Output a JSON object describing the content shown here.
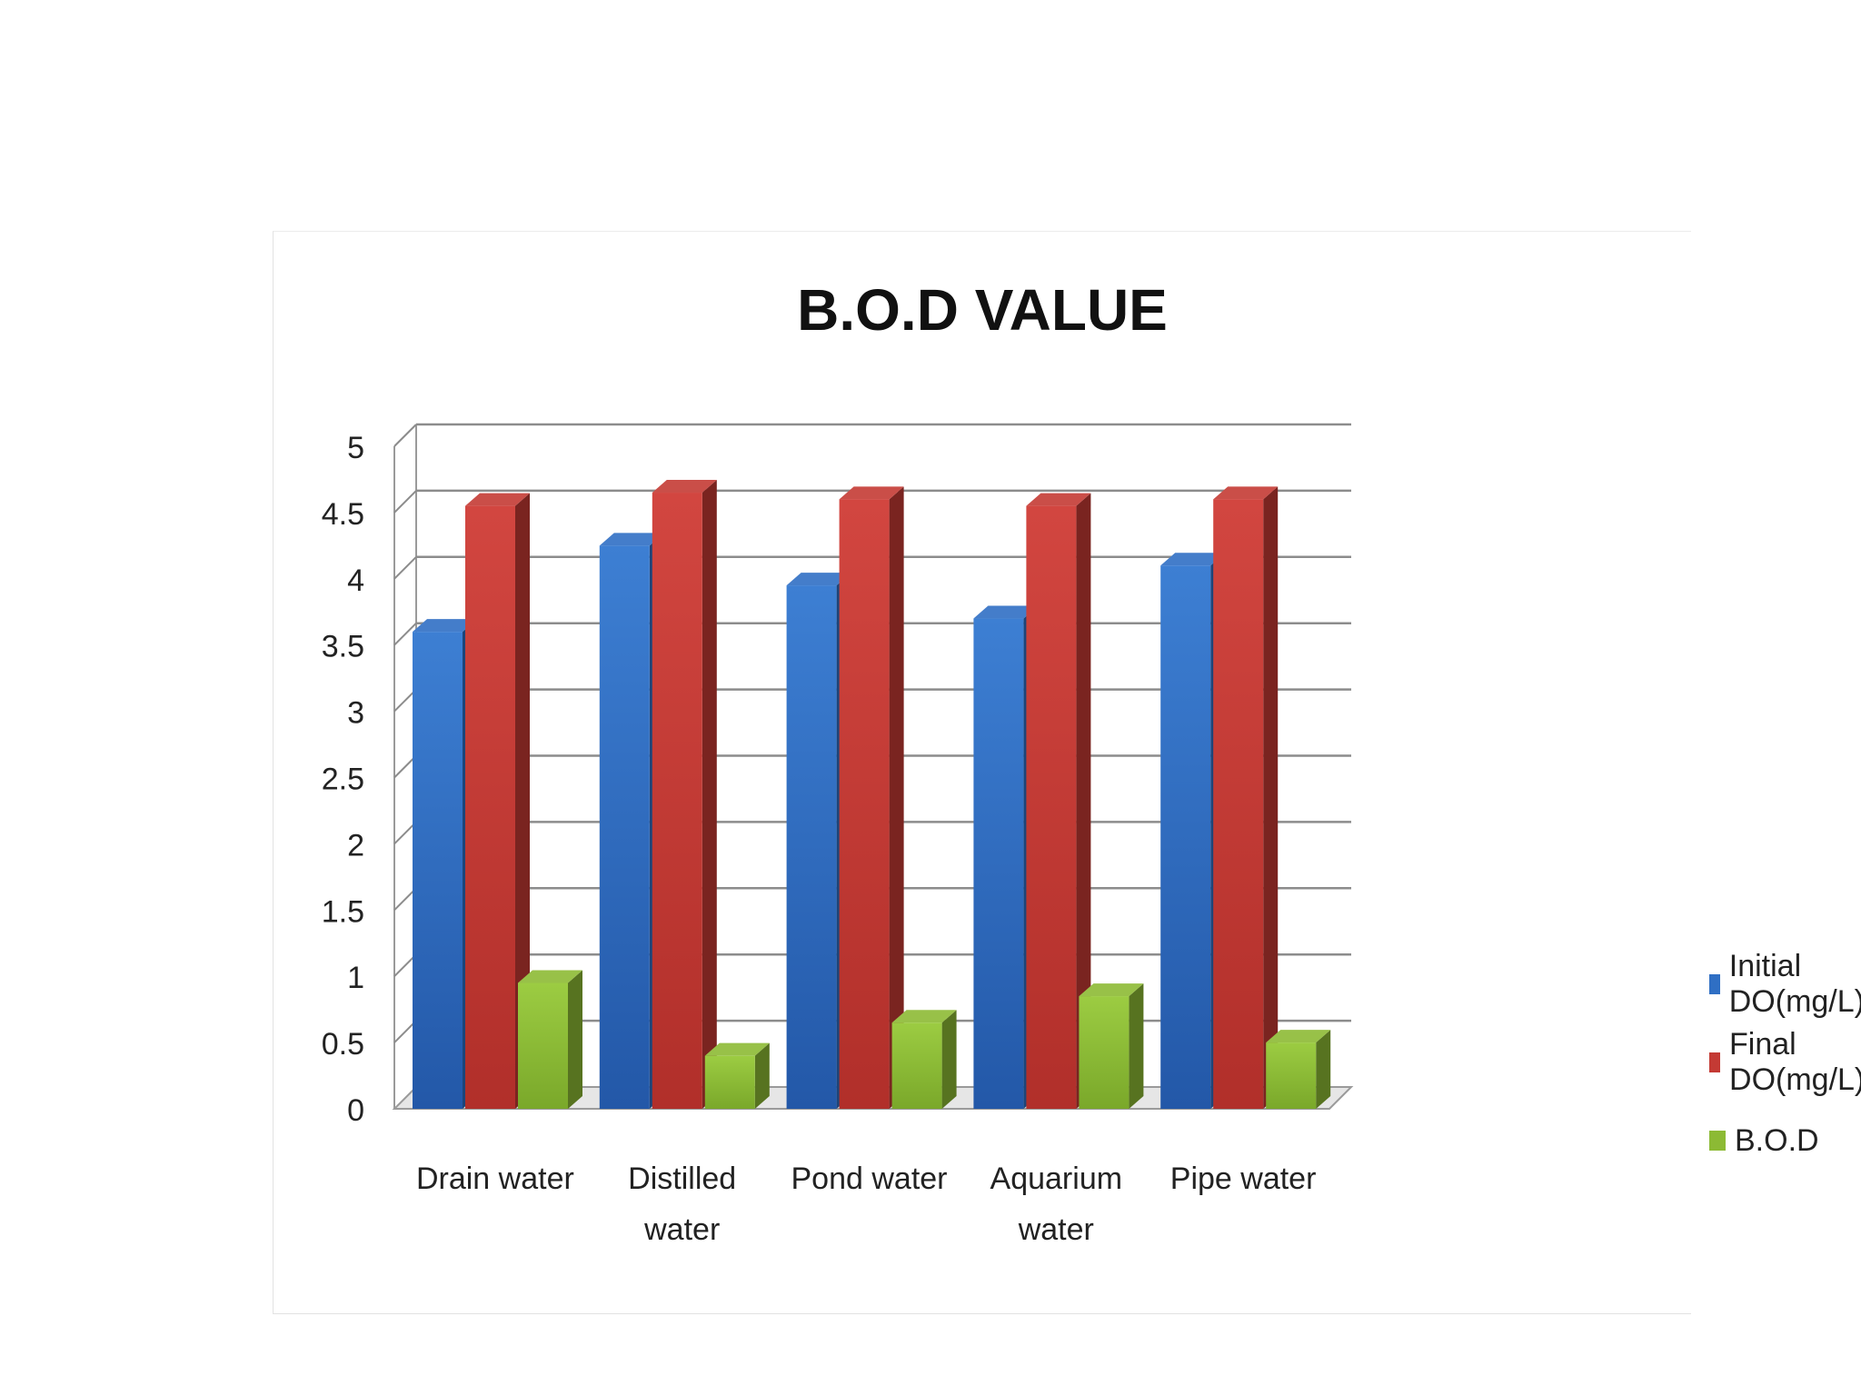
{
  "chart_data": {
    "type": "bar",
    "title": "B.O.D VALUE",
    "categories": [
      [
        "Drain water"
      ],
      [
        "Distilled",
        "water"
      ],
      [
        "Pond water"
      ],
      [
        "Aquarium",
        "water"
      ],
      [
        "Pipe water"
      ]
    ],
    "series": [
      {
        "name": "Initial DO(mg/L)",
        "color": "#2f6fc4",
        "values": [
          3.6,
          4.25,
          3.95,
          3.7,
          4.1
        ]
      },
      {
        "name": "Final DO(mg/L)",
        "color": "#c43a34",
        "values": [
          4.55,
          4.65,
          4.6,
          4.55,
          4.6
        ]
      },
      {
        "name": "B.O.D",
        "color": "#8cba34",
        "values": [
          0.95,
          0.4,
          0.65,
          0.85,
          0.5
        ]
      }
    ],
    "yticks": [
      "0",
      "0.5",
      "1",
      "1.5",
      "2",
      "2.5",
      "3",
      "3.5",
      "4",
      "4.5",
      "5"
    ],
    "ylim": [
      0,
      5
    ],
    "grid": true,
    "legend_position": "right"
  }
}
